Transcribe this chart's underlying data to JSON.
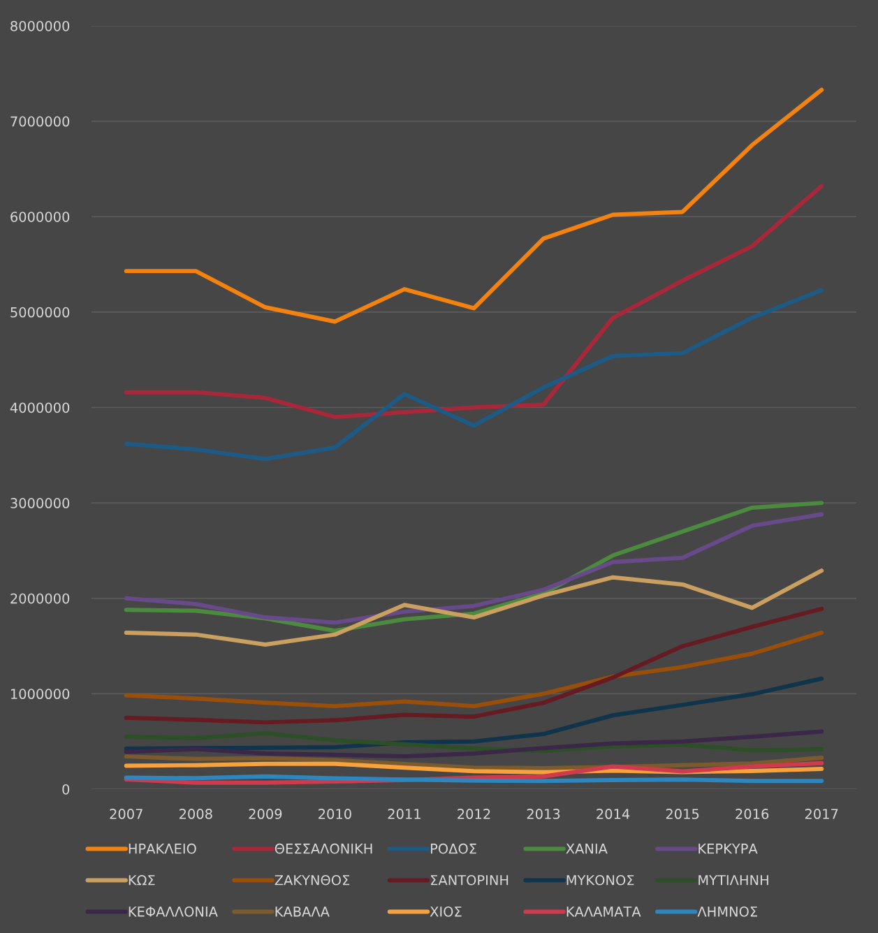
{
  "chart_data": {
    "type": "line",
    "categories": [
      "2007",
      "2008",
      "2009",
      "2010",
      "2011",
      "2012",
      "2013",
      "2014",
      "2015",
      "2016",
      "2017"
    ],
    "ylim": [
      0,
      8000000
    ],
    "yticks": [
      0,
      1000000,
      2000000,
      3000000,
      4000000,
      5000000,
      6000000,
      7000000,
      8000000
    ],
    "grid": "y",
    "legend": "bottom",
    "line_style": "solid",
    "series": [
      {
        "name": "ΗΡΑΚΛΕΙΟ",
        "color": "#f4820f",
        "values": [
          5430000,
          5430000,
          5050000,
          4900000,
          5240000,
          5040000,
          5770000,
          6020000,
          6050000,
          6750000,
          7330000
        ]
      },
      {
        "name": "ΘΕΣΣΑΛΟΝΙΚΗ",
        "color": "#a8283a",
        "values": [
          4160000,
          4160000,
          4100000,
          3900000,
          3950000,
          4000000,
          4030000,
          4940000,
          5330000,
          5690000,
          6320000
        ]
      },
      {
        "name": "ΡΟΔΟΣ",
        "color": "#1d5b86",
        "values": [
          3620000,
          3560000,
          3460000,
          3580000,
          4140000,
          3810000,
          4210000,
          4540000,
          4570000,
          4940000,
          5230000
        ]
      },
      {
        "name": "ΧΑΝΙΑ",
        "color": "#4c8a3f",
        "values": [
          1880000,
          1870000,
          1790000,
          1660000,
          1780000,
          1840000,
          2050000,
          2450000,
          2700000,
          2950000,
          3000000
        ]
      },
      {
        "name": "ΚΕΡΚΥΡΑ",
        "color": "#68498a",
        "values": [
          2000000,
          1940000,
          1800000,
          1745000,
          1860000,
          1920000,
          2090000,
          2380000,
          2425000,
          2760000,
          2880000
        ]
      },
      {
        "name": "ΚΩΣ",
        "color": "#c9a060",
        "values": [
          1640000,
          1620000,
          1515000,
          1620000,
          1930000,
          1800000,
          2030000,
          2220000,
          2145000,
          1900000,
          2290000
        ]
      },
      {
        "name": "ΖΑΚΥΝΘΟΣ",
        "color": "#994f0a",
        "values": [
          983000,
          950000,
          905000,
          870000,
          918000,
          870000,
          1000000,
          1180000,
          1280000,
          1420000,
          1640000
        ]
      },
      {
        "name": "ΣΑΝΤΟΡΙΝΗ",
        "color": "#661a22",
        "values": [
          748000,
          727000,
          700000,
          722000,
          780000,
          760000,
          905000,
          1170000,
          1498000,
          1700000,
          1890000
        ]
      },
      {
        "name": "ΜΥΚΟΝΟΣ",
        "color": "#10344b",
        "values": [
          425000,
          430000,
          434000,
          439000,
          490000,
          500000,
          578000,
          774000,
          883000,
          995000,
          1158000
        ]
      },
      {
        "name": "ΜΥΤΙΛΗΝΗ",
        "color": "#2d4f27",
        "values": [
          549000,
          534000,
          585000,
          512000,
          470000,
          426000,
          400000,
          447000,
          465000,
          408000,
          418000
        ]
      },
      {
        "name": "ΚΕΦΑΛΛΟΝΙΑ",
        "color": "#3b2848",
        "values": [
          390000,
          420000,
          373000,
          360000,
          344000,
          373000,
          430000,
          480000,
          500000,
          549000,
          604000
        ]
      },
      {
        "name": "ΚΑΒΑΛΑ",
        "color": "#7b5b2e",
        "values": [
          343000,
          316000,
          324000,
          303000,
          264000,
          225000,
          220000,
          233000,
          251000,
          269000,
          329000
        ]
      },
      {
        "name": "ΧΙΟΣ",
        "color": "#f8a23e",
        "values": [
          246000,
          251000,
          266000,
          266000,
          225000,
          188000,
          178000,
          193000,
          180000,
          190000,
          212000
        ]
      },
      {
        "name": "ΚΑΛΑΜΑΤΑ",
        "color": "#cf3a4c",
        "values": [
          102000,
          68000,
          68000,
          80000,
          95000,
          120000,
          133000,
          238000,
          186000,
          238000,
          272000
        ]
      },
      {
        "name": "ΛΗΜΝΟΣ",
        "color": "#2c86c0",
        "values": [
          120000,
          115000,
          133000,
          113000,
          100000,
          89000,
          86000,
          95000,
          100000,
          86000,
          86000
        ]
      }
    ]
  }
}
